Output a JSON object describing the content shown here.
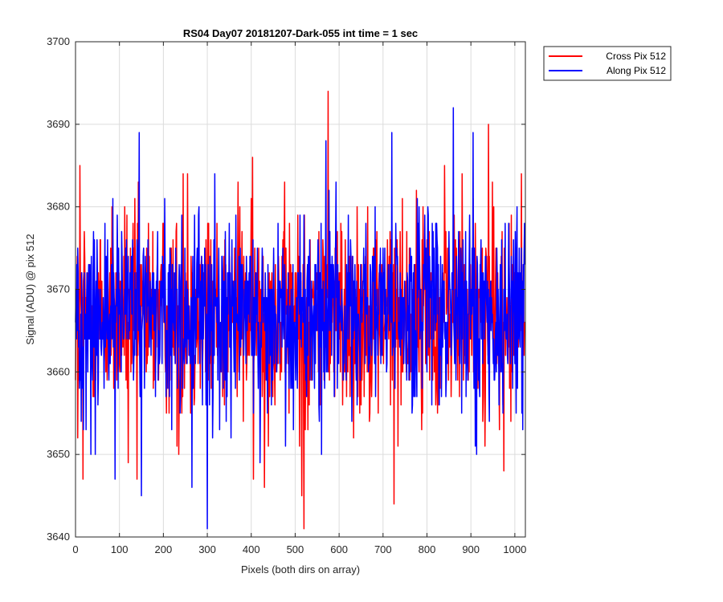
{
  "chart_data": {
    "type": "line",
    "title": "RS04 Day07 20181207-Dark-055 int time = 1 sec",
    "xlabel": "Pixels (both dirs on array)",
    "ylabel": "Signal (ADU) @ pix 512",
    "xlim": [
      0,
      1024
    ],
    "ylim": [
      3640,
      3700
    ],
    "xticks": [
      0,
      100,
      200,
      300,
      400,
      500,
      600,
      700,
      800,
      900,
      1000
    ],
    "yticks": [
      3640,
      3650,
      3660,
      3670,
      3680,
      3690,
      3700
    ],
    "grid": true,
    "legend_position": "outside top-right",
    "series": [
      {
        "name": "Cross Pix 512",
        "color": "#ff0000",
        "n_points": 1024,
        "mean": 3667,
        "spread": 6,
        "notable_points": [
          [
            5,
            3652
          ],
          [
            10,
            3685
          ],
          [
            17,
            3647
          ],
          [
            120,
            3649
          ],
          [
            140,
            3647
          ],
          [
            235,
            3650
          ],
          [
            245,
            3684
          ],
          [
            255,
            3684
          ],
          [
            370,
            3683
          ],
          [
            405,
            3647
          ],
          [
            430,
            3646
          ],
          [
            510,
            3651
          ],
          [
            515,
            3645
          ],
          [
            520,
            3641
          ],
          [
            575,
            3694
          ],
          [
            650,
            3656
          ],
          [
            725,
            3644
          ],
          [
            840,
            3685
          ],
          [
            880,
            3684
          ],
          [
            940,
            3690
          ],
          [
            975,
            3648
          ],
          [
            1015,
            3684
          ]
        ]
      },
      {
        "name": "Along Pix 512",
        "color": "#0000ff",
        "n_points": 1024,
        "mean": 3667,
        "spread": 6,
        "notable_points": [
          [
            35,
            3650
          ],
          [
            45,
            3650
          ],
          [
            90,
            3647
          ],
          [
            145,
            3689
          ],
          [
            150,
            3645
          ],
          [
            265,
            3646
          ],
          [
            300,
            3641
          ],
          [
            420,
            3649
          ],
          [
            570,
            3688
          ],
          [
            720,
            3689
          ],
          [
            860,
            3692
          ],
          [
            905,
            3689
          ],
          [
            910,
            3651
          ]
        ]
      }
    ]
  }
}
